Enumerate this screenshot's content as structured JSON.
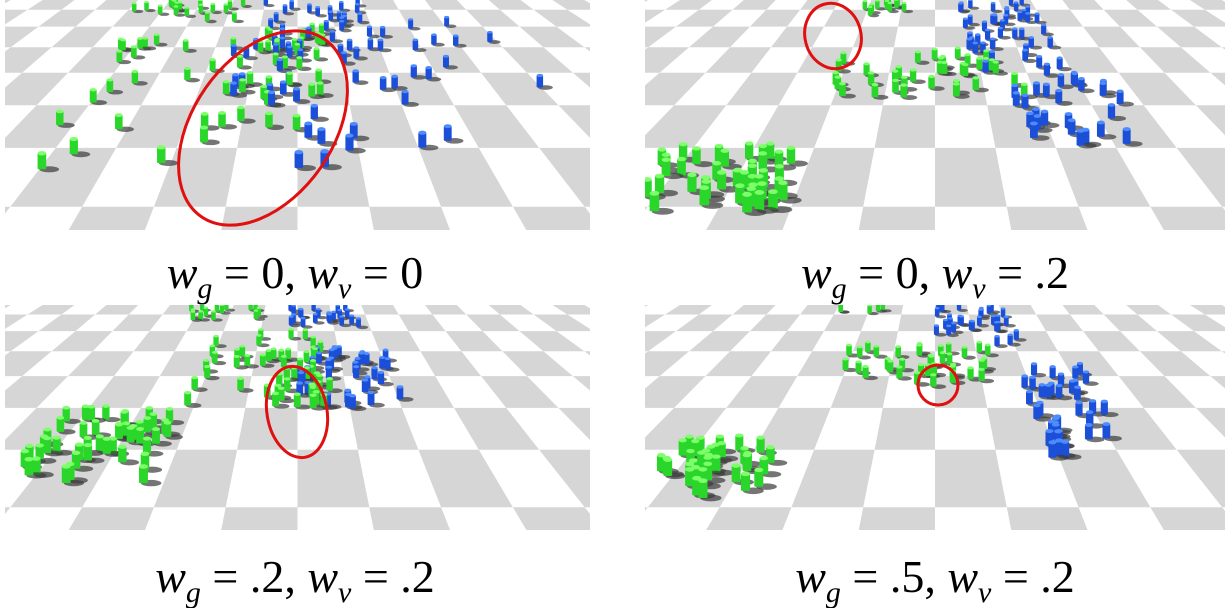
{
  "figure": {
    "panels": [
      {
        "caption": [
          {
            "text": "w",
            "italic": true
          },
          {
            "text": "g",
            "italic": true,
            "sub": true
          },
          {
            "text": " = 0, "
          },
          {
            "text": "w",
            "italic": true
          },
          {
            "text": "v",
            "italic": true,
            "sub": true
          },
          {
            "text": " = 0"
          }
        ]
      },
      {
        "caption": [
          {
            "text": "w",
            "italic": true
          },
          {
            "text": "g",
            "italic": true,
            "sub": true
          },
          {
            "text": " = 0, "
          },
          {
            "text": "w",
            "italic": true
          },
          {
            "text": "v",
            "italic": true,
            "sub": true
          },
          {
            "text": " = .2"
          }
        ]
      },
      {
        "caption": [
          {
            "text": "w",
            "italic": true
          },
          {
            "text": "g",
            "italic": true,
            "sub": true
          },
          {
            "text": " = .2, "
          },
          {
            "text": "w",
            "italic": true
          },
          {
            "text": "v",
            "italic": true,
            "sub": true
          },
          {
            "text": " = .2"
          }
        ]
      },
      {
        "caption": [
          {
            "text": "w",
            "italic": true
          },
          {
            "text": "g",
            "italic": true,
            "sub": true
          },
          {
            "text": " = .5, "
          },
          {
            "text": "w",
            "italic": true
          },
          {
            "text": "v",
            "italic": true,
            "sub": true
          },
          {
            "text": " = .2"
          }
        ]
      }
    ]
  }
}
